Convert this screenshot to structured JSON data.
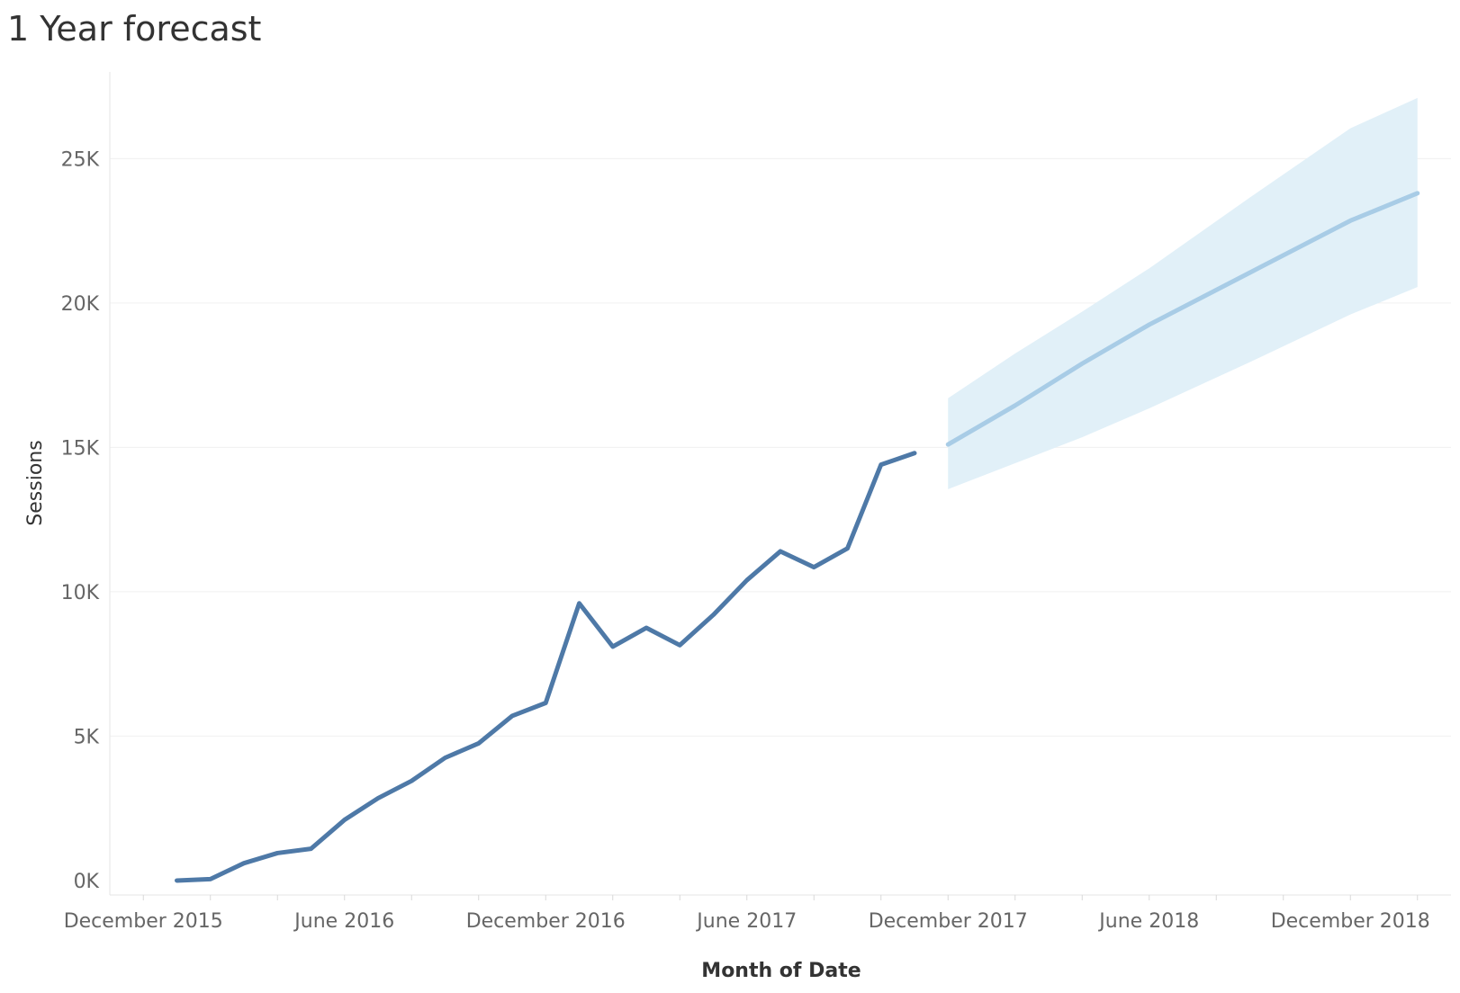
{
  "chart_data": {
    "type": "line",
    "title": "1 Year forecast",
    "xlabel": "Month of Date",
    "ylabel": "Sessions",
    "y_ticks": [
      {
        "value": 0,
        "label": "0K"
      },
      {
        "value": 5000,
        "label": "5K"
      },
      {
        "value": 10000,
        "label": "10K"
      },
      {
        "value": 15000,
        "label": "15K"
      },
      {
        "value": 20000,
        "label": "20K"
      },
      {
        "value": 25000,
        "label": "25K"
      }
    ],
    "ylim": [
      -500,
      28000
    ],
    "x_ticks": [
      {
        "date": "2015-12",
        "label": "December 2015"
      },
      {
        "date": "2016-06",
        "label": "June 2016"
      },
      {
        "date": "2016-12",
        "label": "December 2016"
      },
      {
        "date": "2017-06",
        "label": "June 2017"
      },
      {
        "date": "2017-12",
        "label": "December 2017"
      },
      {
        "date": "2018-06",
        "label": "June 2018"
      },
      {
        "date": "2018-12",
        "label": "December 2018"
      }
    ],
    "xlim": [
      "2015-11",
      "2019-03"
    ],
    "grid": true,
    "series": [
      {
        "kind": "actual",
        "color": "#4e79a7",
        "points": [
          {
            "date": "2016-01",
            "value": 0
          },
          {
            "date": "2016-02",
            "value": 50
          },
          {
            "date": "2016-03",
            "value": 600
          },
          {
            "date": "2016-04",
            "value": 950
          },
          {
            "date": "2016-05",
            "value": 1100
          },
          {
            "date": "2016-06",
            "value": 2100
          },
          {
            "date": "2016-07",
            "value": 2850
          },
          {
            "date": "2016-08",
            "value": 3450
          },
          {
            "date": "2016-09",
            "value": 4250
          },
          {
            "date": "2016-10",
            "value": 4750
          },
          {
            "date": "2016-11",
            "value": 5700
          },
          {
            "date": "2016-12",
            "value": 6150
          },
          {
            "date": "2017-01",
            "value": 9600
          },
          {
            "date": "2017-02",
            "value": 8100
          },
          {
            "date": "2017-03",
            "value": 8750
          },
          {
            "date": "2017-04",
            "value": 8150
          },
          {
            "date": "2017-05",
            "value": 9200
          },
          {
            "date": "2017-06",
            "value": 10400
          },
          {
            "date": "2017-07",
            "value": 11400
          },
          {
            "date": "2017-08",
            "value": 10850
          },
          {
            "date": "2017-09",
            "value": 11500
          },
          {
            "date": "2017-10",
            "value": 14400
          },
          {
            "date": "2017-11",
            "value": 14800
          }
        ]
      },
      {
        "kind": "forecast",
        "color": "#a8cce6",
        "band_color": "#e1f0f8",
        "points": [
          {
            "date": "2017-12",
            "value": 15100,
            "low": 13550,
            "high": 16700
          },
          {
            "date": "2018-02",
            "value": 16450,
            "low": 14450,
            "high": 18250
          },
          {
            "date": "2018-04",
            "value": 17900,
            "low": 15350,
            "high": 19700
          },
          {
            "date": "2018-06",
            "value": 19250,
            "low": 16350,
            "high": 21200
          },
          {
            "date": "2018-09",
            "value": 21050,
            "low": 17950,
            "high": 23650
          },
          {
            "date": "2018-12",
            "value": 22850,
            "low": 19600,
            "high": 26050
          },
          {
            "date": "2019-02",
            "value": 23800,
            "low": 20550,
            "high": 27100
          }
        ]
      }
    ]
  }
}
